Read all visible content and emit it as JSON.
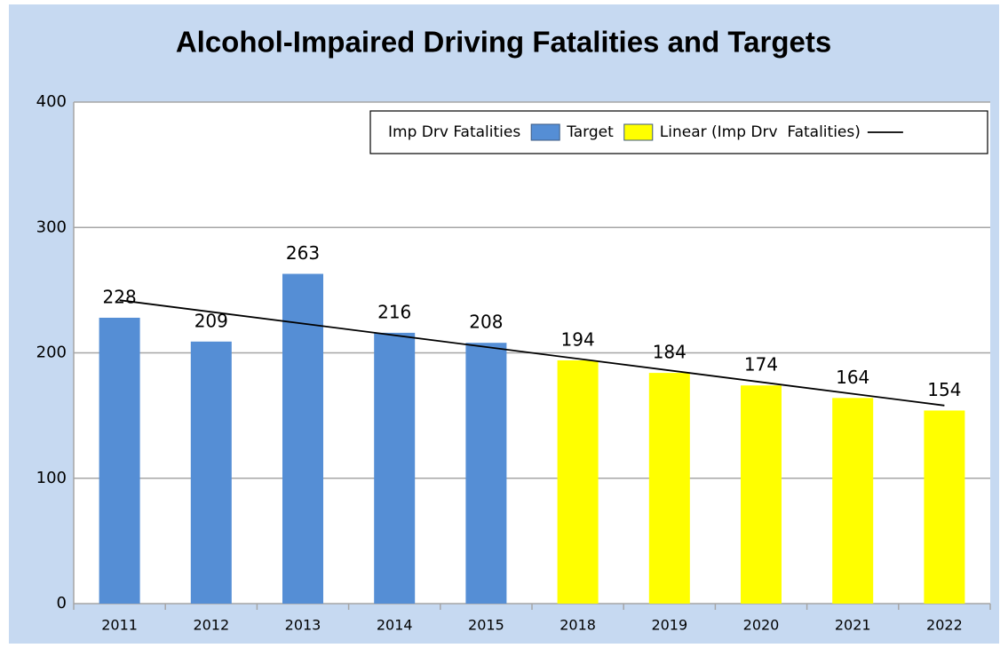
{
  "chart_data": {
    "type": "bar",
    "title": "Alcohol-Impaired Driving Fatalities and Targets",
    "categories": [
      "2011",
      "2012",
      "2013",
      "2014",
      "2015",
      "2018",
      "2019",
      "2020",
      "2021",
      "2022"
    ],
    "series": [
      {
        "name": "Imp Drv Fatalities",
        "color": "#558ed5",
        "values": [
          228,
          209,
          263,
          216,
          208,
          null,
          null,
          null,
          null,
          null
        ]
      },
      {
        "name": "Target",
        "color": "#ffff00",
        "values": [
          null,
          null,
          null,
          null,
          null,
          194,
          184,
          174,
          164,
          154
        ]
      }
    ],
    "trend": {
      "name": "Linear (Imp Drv  Fatalities)",
      "color": "#000000",
      "values": [
        242,
        158
      ]
    },
    "ylim": [
      0,
      400
    ],
    "yticks": [
      0,
      100,
      200,
      300,
      400
    ],
    "grid": true,
    "legend": "top-right"
  }
}
